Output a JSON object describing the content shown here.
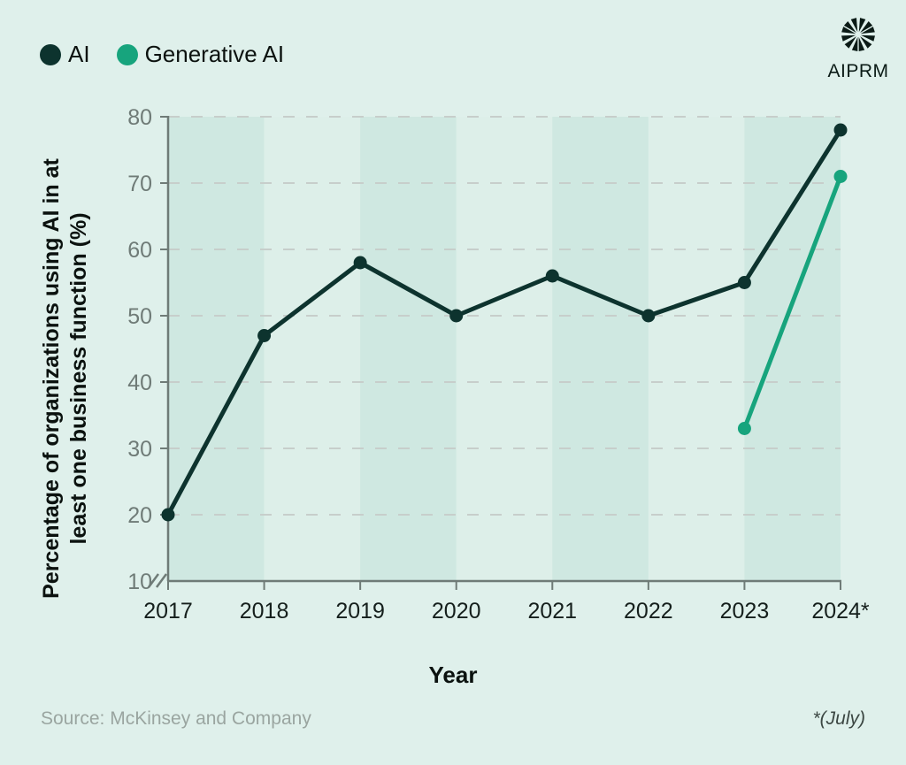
{
  "page": {
    "background": "#dff0eb"
  },
  "legend": {
    "items": [
      {
        "label": "AI",
        "color": "#0d332e"
      },
      {
        "label": "Generative AI",
        "color": "#17a47d"
      }
    ]
  },
  "logo": {
    "text": "AIPRM"
  },
  "footer": {
    "source": "Source: McKinsey and Company",
    "note": "*(July)"
  },
  "chart_data": {
    "type": "line",
    "x": [
      2017,
      2018,
      2019,
      2020,
      2021,
      2022,
      2023,
      2024
    ],
    "x_tick_labels": [
      "2017",
      "2018",
      "2019",
      "2020",
      "2021",
      "2022",
      "2023",
      "2024*"
    ],
    "y_ticks": [
      10,
      20,
      30,
      40,
      50,
      60,
      70,
      80
    ],
    "ylim": [
      10,
      80
    ],
    "series": [
      {
        "name": "AI",
        "color": "#0d332e",
        "x": [
          2017,
          2018,
          2019,
          2020,
          2021,
          2022,
          2023,
          2024
        ],
        "values": [
          20,
          47,
          58,
          50,
          56,
          50,
          55,
          78
        ]
      },
      {
        "name": "Generative AI",
        "color": "#17a47d",
        "x": [
          2023,
          2024
        ],
        "values": [
          33,
          71
        ]
      }
    ],
    "xlabel": "Year",
    "ylabel": "Percentage of organizations using AI in at least one business function (%)",
    "ylabel_lines": [
      "Percentage of organizations using AI in at",
      "least one business function (%)"
    ],
    "grid": "horizontal-dashed",
    "legend_position": "top-left",
    "axis_break_at_y_origin": true,
    "colors": {
      "band_dark": "#cfe8e1",
      "band_light": "#ddefe9",
      "axis": "#6f7b77",
      "grid": "#c7cecb",
      "tick_label_y": "#6f7b77",
      "tick_label_x": "#151f1c"
    }
  }
}
